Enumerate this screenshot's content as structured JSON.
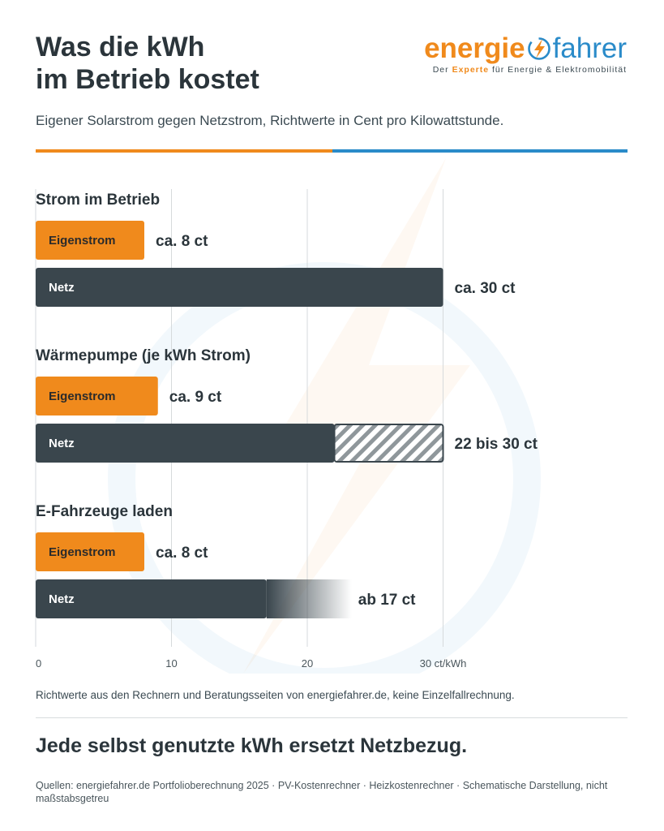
{
  "header": {
    "title_line1": "Was die kWh",
    "title_line2": "im Betrieb kostet",
    "subtitle": "Eigener Solarstrom gegen Netzstrom, Richtwerte in Cent pro Kilowattstunde."
  },
  "logo": {
    "part1": "energie",
    "part2": "fahrer",
    "tagline_prefix": "Der",
    "tagline_bold": "Experte",
    "tagline_suffix": "für Energie & Elektromobilität"
  },
  "colors": {
    "orange": "#f08a1c",
    "blue": "#2a8bc9",
    "dark": "#3a464d"
  },
  "chart_data": {
    "type": "bar",
    "orientation": "horizontal",
    "xlim": [
      0,
      30
    ],
    "xticks": [
      0,
      10,
      20,
      30
    ],
    "xtick_labels": [
      "0",
      "10",
      "20",
      "30 ct/kWh"
    ],
    "grid": true,
    "groups": [
      {
        "title": "Strom im Betrieb",
        "bars": [
          {
            "label": "Eigenstrom",
            "value": 8,
            "value_label": "ca. 8 ct",
            "color": "#f08a1c"
          },
          {
            "label": "Netz",
            "value": 30,
            "value_label": "ca. 30 ct",
            "color": "#3a464d"
          }
        ]
      },
      {
        "title": "Wärmepumpe (je kWh Strom)",
        "bars": [
          {
            "label": "Eigenstrom",
            "value": 9,
            "value_label": "ca. 9 ct",
            "color": "#f08a1c"
          },
          {
            "label": "Netz",
            "value": 22,
            "range_max": 30,
            "value_label": "22 bis 30 ct",
            "color": "#3a464d",
            "range_style": "hatched"
          }
        ]
      },
      {
        "title": "E-Fahrzeuge laden",
        "bars": [
          {
            "label": "Eigenstrom",
            "value": 8,
            "value_label": "ca. 8 ct",
            "color": "#f08a1c"
          },
          {
            "label": "Netz",
            "value": 17,
            "value_label": "ab 17 ct",
            "color": "#3a464d",
            "open_ended": true
          }
        ]
      }
    ]
  },
  "footer": {
    "note": "Richtwerte aus den Rechnern und Beratungsseiten von energiefahrer.de, keine Einzelfallrechnung.",
    "claim": "Jede selbst genutzte kWh ersetzt Netzbezug.",
    "sources": "Quellen: energiefahrer.de Portfolioberechnung 2025 · PV-Kostenrechner · Heizkostenrechner · Schematische Darstellung, nicht maßstabsgetreu"
  }
}
